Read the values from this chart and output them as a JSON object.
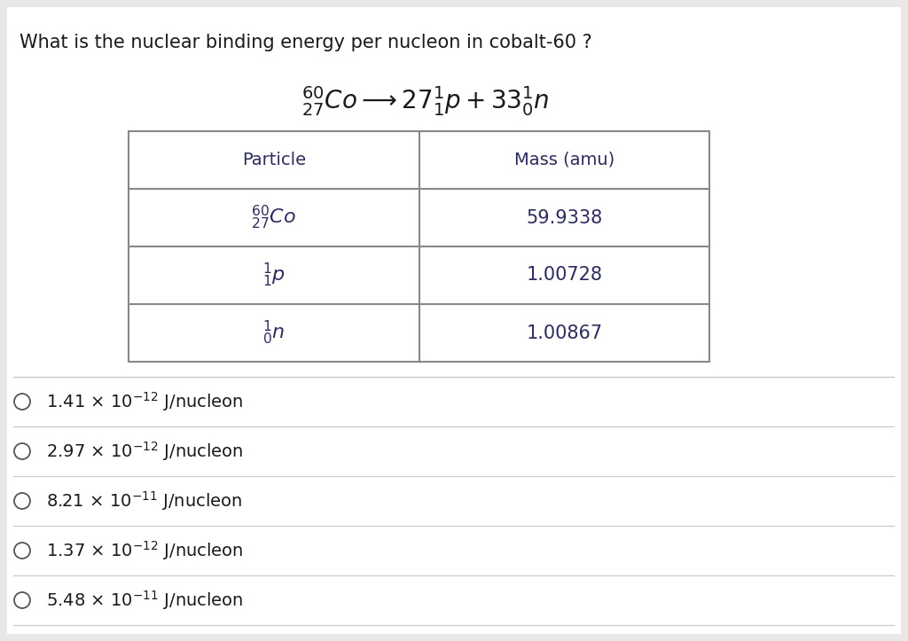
{
  "background_color": "#e8e8e8",
  "inner_background": "#ffffff",
  "question_text": "What is the nuclear binding energy per nucleon in cobalt-60 ?",
  "table_headers": [
    "Particle",
    "Mass (amu)"
  ],
  "table_rows": [
    [
      "59.9338"
    ],
    [
      "1.00728"
    ],
    [
      "1.00867"
    ]
  ],
  "question_fontsize": 15,
  "equation_fontsize": 20,
  "table_header_fontsize": 14,
  "table_cell_fontsize": 15,
  "option_fontsize": 14,
  "text_color": "#1a1a1a",
  "table_text_color": "#2c2c5e",
  "table_border_color": "#888888",
  "line_color": "#cccccc",
  "circle_color": "#555555",
  "option_texts_base": [
    "1.41 × 10",
    "2.97 × 10",
    "8.21 × 10",
    "1.37 × 10",
    "5.48 × 10"
  ],
  "option_exponents": [
    "-12",
    "-12",
    "-11",
    "-12",
    "-11"
  ],
  "option_suffix": " J/nucleon"
}
